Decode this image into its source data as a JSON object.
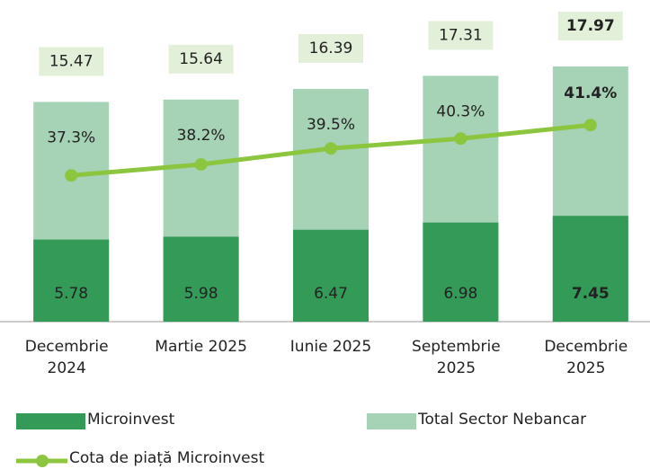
{
  "chart_data": {
    "type": "bar",
    "categories": [
      "Decembrie 2024",
      "Martie 2025",
      "Iunie 2025",
      "Septembrie 2025",
      "Decembrie 2025"
    ],
    "series": [
      {
        "name": "Microinvest",
        "color": "#339a57",
        "values": [
          5.78,
          5.98,
          6.47,
          6.98,
          7.45
        ]
      },
      {
        "name": "Total Sector Nebancar",
        "color": "#a6d2b6",
        "values": [
          15.47,
          15.64,
          16.39,
          17.31,
          17.97
        ]
      },
      {
        "name": "Cota de piață Microinvest",
        "color": "#8cc63f",
        "axis": "y2",
        "type": "line",
        "values": [
          37.3,
          38.2,
          39.5,
          40.3,
          41.4
        ],
        "value_labels": [
          "37.3%",
          "38.2%",
          "39.5%",
          "40.3%",
          "41.4%"
        ]
      }
    ],
    "ylim": [
      0,
      18.6
    ],
    "y2lim": [
      25.4,
      46.9
    ],
    "grid": false
  }
}
